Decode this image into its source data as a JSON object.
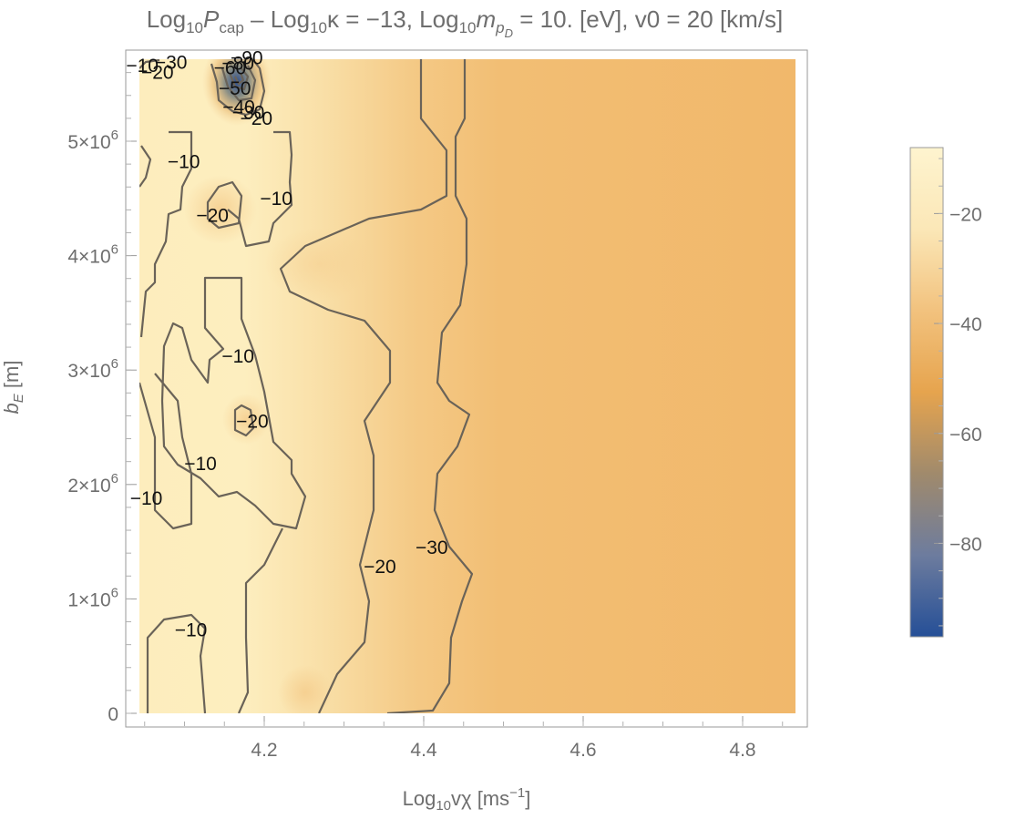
{
  "chart_data": {
    "type": "heatmap",
    "title": "Log10Pcap – Log10κ = −13, Log10mpD = 10. [eV], v0 = 20 [km/s]",
    "title_parts": {
      "a": "Log",
      "a_sub": "10",
      "b": "P",
      "b_sub": "cap",
      "c": " – Log",
      "c_sub": "10",
      "d": "κ = −13, Log",
      "d_sub": "10",
      "e": "m",
      "e_sub": "p",
      "e_subsub": "D",
      "f": " = 10. [eV], v0 = 20 [km/s]"
    },
    "xlabel": "Log10vχ [ms−1]",
    "xlabel_parts": {
      "a": "Log",
      "a_sub": "10",
      "b": "vχ [ms",
      "b_sup": "−1",
      "c": "]"
    },
    "ylabel": "bE [m]",
    "ylabel_parts": {
      "a": "b",
      "a_sub": "E",
      "b": " [m]"
    },
    "xlim": [
      4.04,
      4.86
    ],
    "ylim": [
      -100000,
      5800000
    ],
    "x_ticks": [
      {
        "value": 4.2,
        "label": "4.2"
      },
      {
        "value": 4.4,
        "label": "4.4"
      },
      {
        "value": 4.6,
        "label": "4.6"
      },
      {
        "value": 4.8,
        "label": "4.8"
      }
    ],
    "y_ticks": [
      {
        "value": 0,
        "mant": "0",
        "exp": ""
      },
      {
        "value": 1000000,
        "mant": "1×10",
        "exp": "6"
      },
      {
        "value": 2000000,
        "mant": "2×10",
        "exp": "6"
      },
      {
        "value": 3000000,
        "mant": "3×10",
        "exp": "6"
      },
      {
        "value": 4000000,
        "mant": "4×10",
        "exp": "6"
      },
      {
        "value": 5000000,
        "mant": "5×10",
        "exp": "6"
      }
    ],
    "colorbar": {
      "range": [
        -97,
        -8
      ],
      "ticks": [
        {
          "value": -20,
          "label": "−20"
        },
        {
          "value": -40,
          "label": "−40"
        },
        {
          "value": -60,
          "label": "−60"
        },
        {
          "value": -80,
          "label": "−80"
        }
      ],
      "colors": [
        "#254f97",
        "#6d7c9e",
        "#a08a6c",
        "#e6a44e",
        "#f2c27e",
        "#fbe7b7",
        "#fef4cf"
      ]
    },
    "contour_labels": [
      {
        "text": "−10",
        "x": 4.047,
        "y": 5660000
      },
      {
        "text": "−30",
        "x": 4.083,
        "y": 5690000
      },
      {
        "text": "−20",
        "x": 4.066,
        "y": 5600000
      },
      {
        "text": "−90",
        "x": 4.178,
        "y": 5730000
      },
      {
        "text": "−80",
        "x": 4.167,
        "y": 5680000
      },
      {
        "text": "−60",
        "x": 4.157,
        "y": 5640000
      },
      {
        "text": "−50",
        "x": 4.163,
        "y": 5460000
      },
      {
        "text": "−40",
        "x": 4.168,
        "y": 5300000
      },
      {
        "text": "−30",
        "x": 4.18,
        "y": 5250000
      },
      {
        "text": "−20",
        "x": 4.19,
        "y": 5200000
      },
      {
        "text": "−10",
        "x": 4.099,
        "y": 4820000
      },
      {
        "text": "−10",
        "x": 4.215,
        "y": 4500000
      },
      {
        "text": "−20",
        "x": 4.135,
        "y": 4350000
      },
      {
        "text": "−10",
        "x": 4.167,
        "y": 3120000
      },
      {
        "text": "−20",
        "x": 4.185,
        "y": 2550000
      },
      {
        "text": "−10",
        "x": 4.12,
        "y": 2180000
      },
      {
        "text": "−10",
        "x": 4.052,
        "y": 1880000
      },
      {
        "text": "−30",
        "x": 4.41,
        "y": 1450000
      },
      {
        "text": "−20",
        "x": 4.345,
        "y": 1280000
      },
      {
        "text": "−10",
        "x": 4.108,
        "y": 730000
      }
    ]
  }
}
